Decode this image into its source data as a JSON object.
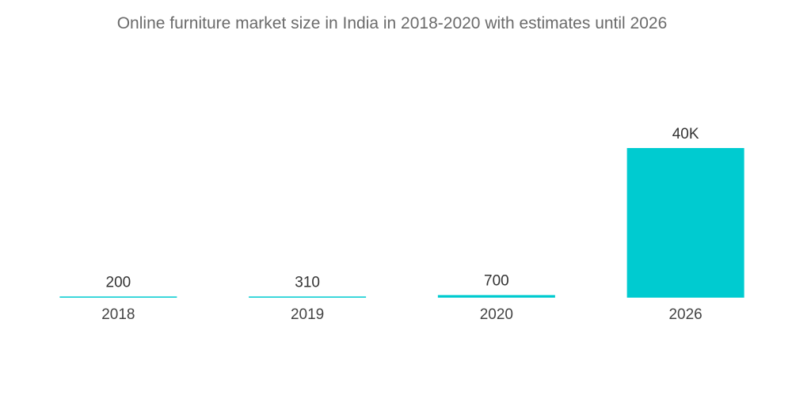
{
  "chart_data": {
    "type": "bar",
    "title": "Online furniture market size in India in 2018-2020 with estimates until 2026",
    "categories": [
      "2018",
      "2019",
      "2020",
      "2026"
    ],
    "values": [
      200,
      310,
      700,
      40000
    ],
    "value_labels": [
      "200",
      "310",
      "700",
      "40K"
    ],
    "xlabel": "",
    "ylabel": "",
    "ylim": [
      0,
      40000
    ],
    "grid": false,
    "legend": "none",
    "bar_color": "#00cbd0"
  }
}
